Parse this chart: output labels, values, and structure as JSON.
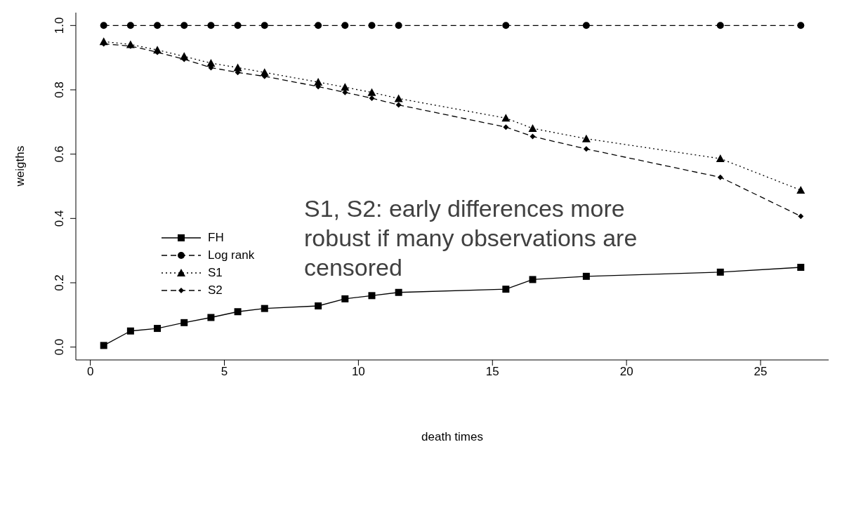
{
  "chart_data": {
    "type": "line",
    "xlabel": "death times",
    "ylabel": "weigths",
    "x": [
      0.5,
      1.5,
      2.5,
      3.5,
      4.5,
      5.5,
      6.5,
      8.5,
      9.5,
      10.5,
      11.5,
      15.5,
      16.5,
      18.5,
      23.5,
      26.5
    ],
    "series": [
      {
        "name": "FH",
        "color": "#000000",
        "marker": "square",
        "line_style": "solid",
        "values": [
          0.005,
          0.05,
          0.058,
          0.076,
          0.092,
          0.11,
          0.12,
          0.128,
          0.15,
          0.16,
          0.17,
          0.18,
          0.21,
          0.22,
          0.233,
          0.248
        ]
      },
      {
        "name": "Log rank",
        "color": "#000000",
        "marker": "circle",
        "line_style": "dashed",
        "values": [
          1.0,
          1.0,
          1.0,
          1.0,
          1.0,
          1.0,
          1.0,
          1.0,
          1.0,
          1.0,
          1.0,
          1.0,
          null,
          1.0,
          1.0,
          1.0
        ]
      },
      {
        "name": "S1",
        "color": "#000000",
        "marker": "triangle",
        "line_style": "dotted",
        "values": [
          0.95,
          0.941,
          0.924,
          0.904,
          0.883,
          0.869,
          0.854,
          0.824,
          0.808,
          0.792,
          0.773,
          0.712,
          0.68,
          0.648,
          0.586,
          0.488
        ]
      },
      {
        "name": "S2",
        "color": "#000000",
        "marker": "diamond",
        "line_style": "dashed",
        "values": [
          0.943,
          0.936,
          0.917,
          0.895,
          0.869,
          0.854,
          0.842,
          0.81,
          0.792,
          0.774,
          0.753,
          0.684,
          0.655,
          0.616,
          0.528,
          0.407
        ]
      }
    ],
    "xlim": [
      -0.54,
      27.54
    ],
    "xticks": [
      0,
      5,
      10,
      15,
      20,
      25
    ],
    "ylim": [
      -0.04,
      1.04
    ],
    "yticks": [
      {
        "value": 0,
        "label": "0.0"
      },
      {
        "value": 0.2,
        "label": "0.2"
      },
      {
        "value": 0.4,
        "label": "0.4"
      },
      {
        "value": 0.6,
        "label": "0.6"
      },
      {
        "value": 0.8,
        "label": "0.8"
      },
      {
        "value": 1,
        "label": "1.0"
      }
    ],
    "grid": false,
    "legend": "left",
    "annotations": [
      "S1, S2: early differences more robust if many observations are censored"
    ]
  }
}
